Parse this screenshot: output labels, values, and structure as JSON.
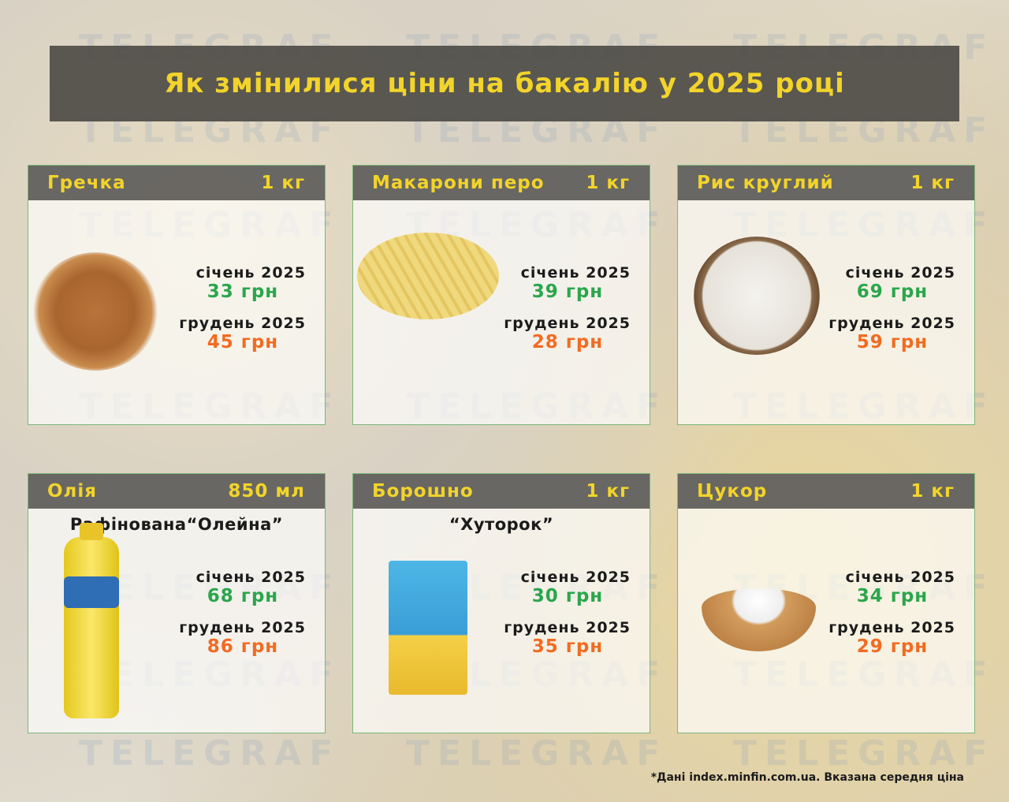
{
  "title": "Як змінилися ціни на бакалію у 2025 році",
  "watermark": "TELEGRAF",
  "colors": {
    "title": "#f2d42a",
    "january_price": "#2aa64c",
    "december_price": "#f26b21",
    "card_border": "#7ab77a"
  },
  "labels": {
    "january": "січень 2025",
    "december": "грудень 2025"
  },
  "products": [
    {
      "name": "Гречка",
      "unit": "1 кг",
      "subtitle": "",
      "jan": "33 грн",
      "dec": "45 грн",
      "image": "buckwheat"
    },
    {
      "name": "Макарони перо",
      "unit": "1 кг",
      "subtitle": "",
      "jan": "39 грн",
      "dec": "28 грн",
      "image": "penne-pasta"
    },
    {
      "name": "Рис круглий",
      "unit": "1 кг",
      "subtitle": "",
      "jan": "69 грн",
      "dec": "59 грн",
      "image": "rice-bowl"
    },
    {
      "name": "Олія",
      "unit": "850 мл",
      "subtitle": "Рафінована“Олейна”",
      "jan": "68 грн",
      "dec": "86 грн",
      "image": "oil-bottle"
    },
    {
      "name": "Борошно",
      "unit": "1 кг",
      "subtitle": "“Хуторок”",
      "jan": "30 грн",
      "dec": "35 грн",
      "image": "flour-pack"
    },
    {
      "name": "Цукор",
      "unit": "1 кг",
      "subtitle": "",
      "jan": "34 грн",
      "dec": "29 грн",
      "image": "sugar-bowl"
    }
  ],
  "footnote": "*Дані index.minfin.com.ua. Вказана середня ціна"
}
